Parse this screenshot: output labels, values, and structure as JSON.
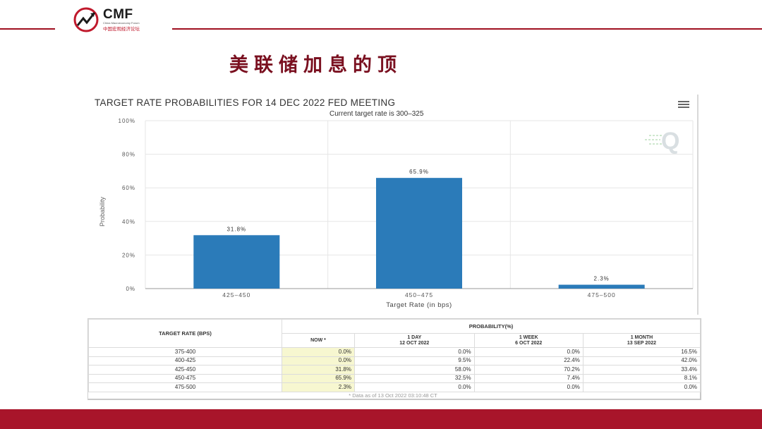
{
  "header": {
    "brand": "CMF",
    "brand_sub_en": "China Macroeconomy Forum",
    "brand_sub_cn": "中国宏观经济论坛",
    "page_title": "美联储加息的顶"
  },
  "colors": {
    "accent": "#a8152a",
    "bar": "#2b7bb9",
    "now_col": "#f7f7d0"
  },
  "chart_data": {
    "type": "bar",
    "title": "TARGET RATE PROBABILITIES FOR 14 DEC 2022 FED MEETING",
    "subtitle": "Current target rate is 300–325",
    "categories": [
      "425–450",
      "450–475",
      "475–500"
    ],
    "values": [
      31.8,
      65.9,
      2.3
    ],
    "data_labels": [
      "31.8%",
      "65.9%",
      "2.3%"
    ],
    "xlabel": "Target Rate (in bps)",
    "ylabel": "Probability",
    "ylim": [
      0,
      100
    ],
    "yticks": [
      "0%",
      "20%",
      "40%",
      "60%",
      "80%",
      "100%"
    ],
    "grid": true
  },
  "table": {
    "rate_header": "TARGET RATE (BPS)",
    "prob_header": "PROBABILITY(%)",
    "columns": [
      {
        "l1": "NOW *",
        "l2": ""
      },
      {
        "l1": "1 DAY",
        "l2": "12 OCT 2022"
      },
      {
        "l1": "1 WEEK",
        "l2": "6 OCT 2022"
      },
      {
        "l1": "1 MONTH",
        "l2": "13 SEP 2022"
      }
    ],
    "rows": [
      {
        "rate": "375-400",
        "vals": [
          "0.0%",
          "0.0%",
          "0.0%",
          "16.5%"
        ]
      },
      {
        "rate": "400-425",
        "vals": [
          "0.0%",
          "9.5%",
          "22.4%",
          "42.0%"
        ]
      },
      {
        "rate": "425-450",
        "vals": [
          "31.8%",
          "58.0%",
          "70.2%",
          "33.4%"
        ]
      },
      {
        "rate": "450-475",
        "vals": [
          "65.9%",
          "32.5%",
          "7.4%",
          "8.1%"
        ]
      },
      {
        "rate": "475-500",
        "vals": [
          "2.3%",
          "0.0%",
          "0.0%",
          "0.0%"
        ]
      }
    ],
    "footnote": "* Data as of 13 Oct 2022 03:10:48 CT"
  },
  "icons": {
    "menu": "hamburger-menu-icon",
    "watermark": "q-watermark-icon",
    "logo": "cmf-logo-icon"
  }
}
